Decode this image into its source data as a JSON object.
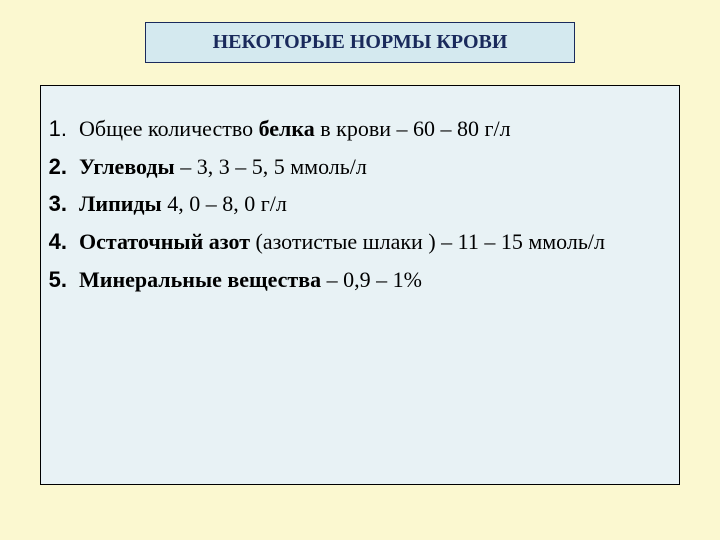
{
  "colors": {
    "slide_bg": "#fbf8d0",
    "title_bg": "#d4e9ef",
    "title_border": "#1a2a5c",
    "title_text": "#1a2a5c",
    "content_bg": "#e8f2f5",
    "content_border": "#000000",
    "text_color": "#000000"
  },
  "title": "НЕКОТОРЫЕ НОРМЫ КРОВИ",
  "list": [
    {
      "number": "1.",
      "number_bold": false,
      "segments": [
        {
          "text": "Общее количество ",
          "bold": false
        },
        {
          "text": "белка",
          "bold": true
        },
        {
          "text": " в крови – 60 – 80 г/л",
          "bold": false
        }
      ]
    },
    {
      "number": "2.",
      "number_bold": true,
      "segments": [
        {
          "text": "Углеводы",
          "bold": true
        },
        {
          "text": " – 3, 3 – 5, 5 ммоль/л",
          "bold": false
        }
      ]
    },
    {
      "number": "3.",
      "number_bold": true,
      "segments": [
        {
          "text": "Липиды",
          "bold": true
        },
        {
          "text": " 4, 0 – 8, 0 г/л",
          "bold": false
        }
      ]
    },
    {
      "number": "4.",
      "number_bold": true,
      "segments": [
        {
          "text": "Остаточный азот",
          "bold": true
        },
        {
          "text": " (азотистые шлаки ) – 11 – 15 ммоль/л",
          "bold": false
        }
      ]
    },
    {
      "number": "5.",
      "number_bold": true,
      "segments": [
        {
          "text": "Минеральные вещества",
          "bold": true
        },
        {
          "text": " – 0,9 – 1%",
          "bold": false
        }
      ]
    }
  ],
  "typography": {
    "title_fontsize": 20,
    "body_fontsize": 22,
    "font_family": "Times New Roman"
  }
}
